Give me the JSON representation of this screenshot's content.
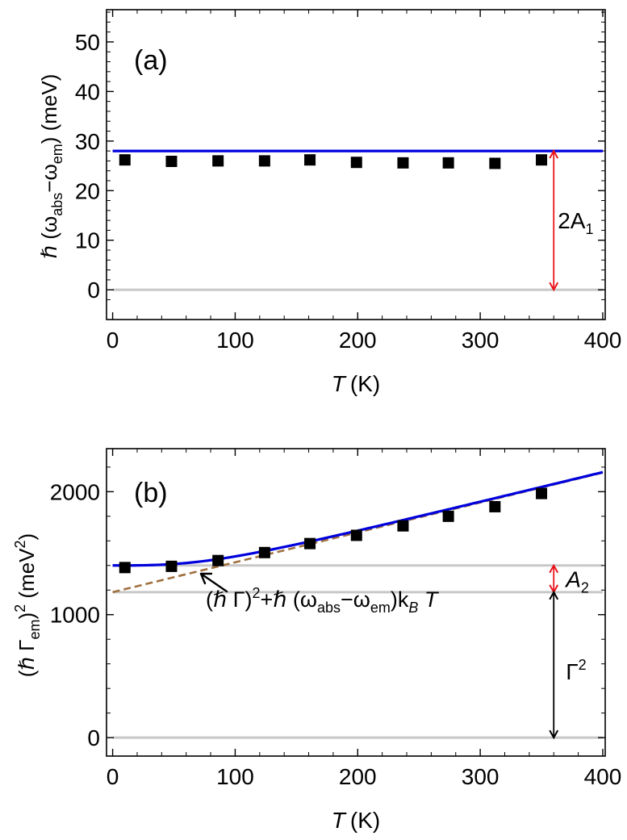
{
  "chart_data": [
    {
      "type": "scatter",
      "panel_label": "(a)",
      "xlabel": {
        "var": "T",
        "unit": "(K)"
      },
      "ylabel": {
        "prefix": "ℏ (ω",
        "sub1": "abs",
        "mid": "−ω",
        "sub2": "em",
        "suffix": ") (meV)"
      },
      "xlim": [
        -5,
        402
      ],
      "ylim": [
        -6,
        56.5
      ],
      "xticks": [
        0,
        100,
        200,
        300,
        400
      ],
      "yticks": [
        0,
        10,
        20,
        30,
        40,
        50
      ],
      "points": {
        "x": [
          10,
          48,
          86,
          124,
          161,
          199,
          237,
          274,
          312,
          350
        ],
        "y": [
          26.2,
          25.9,
          26.0,
          26.0,
          26.2,
          25.7,
          25.6,
          25.6,
          25.5,
          26.2
        ]
      },
      "fit_line": {
        "value": 28.0,
        "color": "#0000dd"
      },
      "baseline": {
        "value": 0,
        "color": "#c8c8c8"
      },
      "annotation": {
        "text_main": "2A",
        "text_sub": "1",
        "x": 360,
        "y_from": 0,
        "y_to": 28.0,
        "color": "#e8141a"
      }
    },
    {
      "type": "scatter",
      "panel_label": "(b)",
      "xlabel": {
        "var": "T",
        "unit": "(K)"
      },
      "ylabel": {
        "prefix": "(ℏ Γ",
        "sub": "em",
        "mid": ")",
        "sup1": "2",
        "unit": " (meV",
        "sup2": "2",
        "end": ")"
      },
      "xlim": [
        -5,
        402
      ],
      "ylim": [
        -150,
        2350
      ],
      "xticks": [
        0,
        100,
        200,
        300,
        400
      ],
      "yticks": [
        0,
        1000,
        2000
      ],
      "points": {
        "x": [
          10,
          48,
          86,
          124,
          161,
          199,
          237,
          274,
          312,
          350
        ],
        "y": [
          1383,
          1393,
          1440,
          1505,
          1578,
          1645,
          1722,
          1800,
          1878,
          1985
        ]
      },
      "fit_curve": {
        "gamma_sq": 1183,
        "a2": 217,
        "slope": 2.43,
        "scale": 55,
        "color": "#0000dd"
      },
      "asymptote": {
        "intercept": 1183,
        "slope": 2.43,
        "color": "#a0703f"
      },
      "baselines": {
        "values": [
          0,
          1183,
          1400
        ],
        "color": "#c8c8c8"
      },
      "annotation_a2": {
        "text_main": "A",
        "text_sub": "2",
        "x": 360,
        "y_from": 1183,
        "y_to": 1400,
        "color": "#e8141a"
      },
      "annotation_gamma": {
        "text_main": "Γ",
        "text_sup": "2",
        "x": 360,
        "y_from": 0,
        "y_to": 1183,
        "color": "#000000"
      },
      "formula": {
        "p1": "(ℏ Γ)",
        "sup": "2",
        "p2": "+ℏ (ω",
        "sub1": "abs",
        "p3": "−ω",
        "sub2": "em",
        "p4": ")k",
        "sub3": "B",
        "p5": " T"
      }
    }
  ]
}
